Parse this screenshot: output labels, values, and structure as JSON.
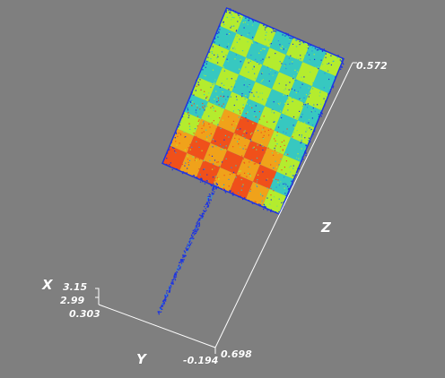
{
  "viewer": {
    "background": "#7f7f7f",
    "axis_color": "#ffffff",
    "colormap": [
      "#1f35e0",
      "#2a8fe6",
      "#37c8c0",
      "#6fe07a",
      "#b4ec2e",
      "#f0a21a",
      "#f0501a"
    ]
  },
  "axes": {
    "x": {
      "name": "X",
      "ticks": [
        "3.15",
        "2.99",
        "0.303"
      ]
    },
    "y": {
      "name": "Y",
      "ticks": [
        "-0.194"
      ]
    },
    "z": {
      "name": "Z",
      "ticks": [
        "0.698",
        "0.572"
      ]
    }
  },
  "point_cloud": {
    "object": "checkerboard",
    "grid_columns": 7,
    "grid_rows": 9
  }
}
